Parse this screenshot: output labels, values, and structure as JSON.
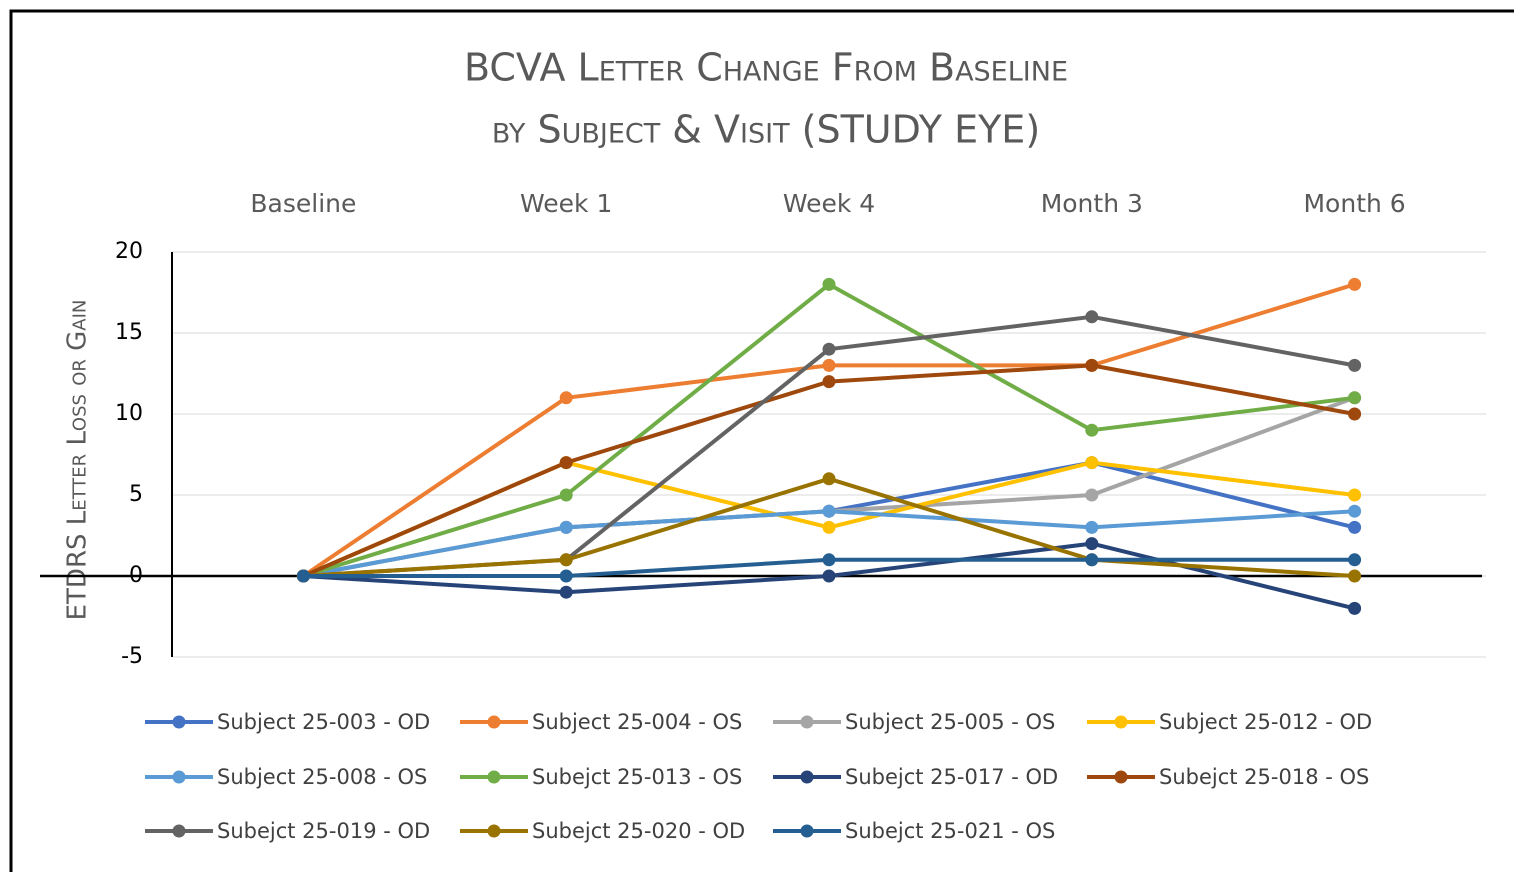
{
  "chart_data": {
    "type": "line",
    "title": "BCVA Letter Change From Baseline",
    "subtitle": "by Subject & Visit (STUDY EYE)",
    "y_label": "ETDRS Letter Loss or Gain",
    "categories": [
      "Baseline",
      "Week 1",
      "Week 4",
      "Month 3",
      "Month 6"
    ],
    "ylim": [
      -5,
      20
    ],
    "yticks": [
      -5,
      0,
      5,
      10,
      15,
      20
    ],
    "grid": true,
    "series": [
      {
        "name": "Subject 25-003 - OD",
        "color": "#4472c4",
        "values": [
          0,
          3,
          4,
          7,
          3
        ]
      },
      {
        "name": "Subject 25-004 - OS",
        "color": "#ed7d31",
        "values": [
          0,
          11,
          13,
          13,
          18
        ]
      },
      {
        "name": "Subject 25-005 - OS",
        "color": "#a5a5a5",
        "values": [
          0,
          3,
          4,
          5,
          11
        ]
      },
      {
        "name": "Subject 25-012 - OD",
        "color": "#ffc000",
        "values": [
          0,
          7,
          3,
          7,
          5
        ]
      },
      {
        "name": "Subject 25-008 - OS",
        "color": "#5b9bd5",
        "values": [
          0,
          3,
          4,
          3,
          4
        ]
      },
      {
        "name": "Subejct 25-013 - OS",
        "color": "#70ad47",
        "values": [
          0,
          5,
          18,
          9,
          11
        ]
      },
      {
        "name": "Subejct 25-017 - OD",
        "color": "#264478",
        "values": [
          0,
          -1,
          0,
          2,
          -2
        ]
      },
      {
        "name": "Subejct 25-018 - OS",
        "color": "#9e480e",
        "values": [
          0,
          7,
          12,
          13,
          10
        ]
      },
      {
        "name": "Subejct 25-019 - OD",
        "color": "#636363",
        "values": [
          0,
          1,
          14,
          16,
          13
        ]
      },
      {
        "name": "Subejct 25-020 - OD",
        "color": "#997300",
        "values": [
          0,
          1,
          6,
          1,
          0
        ]
      },
      {
        "name": "Subejct 25-021 - OS",
        "color": "#255e91",
        "values": [
          0,
          0,
          1,
          1,
          1
        ]
      }
    ]
  }
}
